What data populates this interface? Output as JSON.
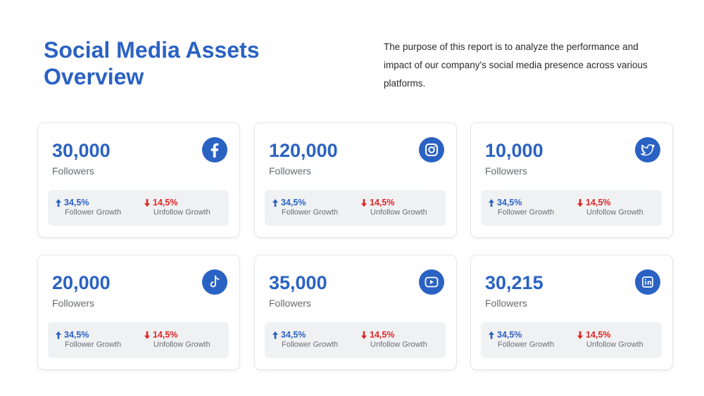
{
  "header": {
    "title": "Social Media Assets Overview",
    "description": "The purpose of this report is to analyze the performance and impact of our company's social media presence across various platforms."
  },
  "colors": {
    "accent": "#2a62c4",
    "down": "#e02424",
    "panel": "#f0f1f3"
  },
  "cards": [
    {
      "value": "30,000",
      "label": "Followers",
      "icon": "facebook-icon",
      "growth": "34,5%",
      "growth_label": "Follower Growth",
      "unfollow": "14,5%",
      "unfollow_label": "Unfollow Growth"
    },
    {
      "value": "120,000",
      "label": "Followers",
      "icon": "instagram-icon",
      "growth": "34,5%",
      "growth_label": "Follower Growth",
      "unfollow": "14,5%",
      "unfollow_label": "Unfollow Growth"
    },
    {
      "value": "10,000",
      "label": "Followers",
      "icon": "twitter-icon",
      "growth": "34,5%",
      "growth_label": "Follower Growth",
      "unfollow": "14,5%",
      "unfollow_label": "Unfollow Growth"
    },
    {
      "value": "20,000",
      "label": "Followers",
      "icon": "tiktok-icon",
      "growth": "34,5%",
      "growth_label": "Follower Growth",
      "unfollow": "14,5%",
      "unfollow_label": "Unfollow Growth"
    },
    {
      "value": "35,000",
      "label": "Followers",
      "icon": "youtube-icon",
      "growth": "34,5%",
      "growth_label": "Follower Growth",
      "unfollow": "14,5%",
      "unfollow_label": "Unfollow Growth"
    },
    {
      "value": "30,215",
      "label": "Followers",
      "icon": "linkedin-icon",
      "growth": "34,5%",
      "growth_label": "Follower Growth",
      "unfollow": "14,5%",
      "unfollow_label": "Unfollow Growth"
    }
  ]
}
